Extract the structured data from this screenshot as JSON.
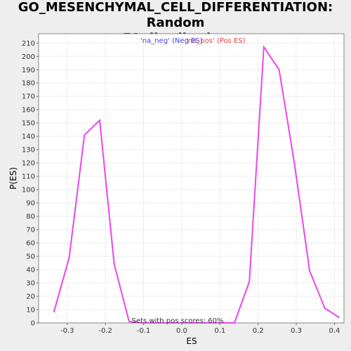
{
  "chart_data": {
    "type": "line",
    "title": "GO_MESENCHYMAL_CELL_DIFFERENTIATION: Random ES distribution",
    "title_line1": "GO_MESENCHYMAL_CELL_DIFFERENTIATION: Random",
    "title_line2": "ES distribution",
    "xlabel": "ES",
    "ylabel": "P(ES)",
    "xlim": [
      -0.375,
      0.425
    ],
    "ylim": [
      0,
      217
    ],
    "x_ticks": [
      -0.3,
      -0.2,
      -0.1,
      0.0,
      0.1,
      0.2,
      0.3,
      0.4
    ],
    "x_tick_labels": [
      "-0.3",
      "-0.2",
      "-0.1",
      "0.0",
      "0.1",
      "0.2",
      "0.3",
      "0.4"
    ],
    "y_ticks": [
      0,
      10,
      20,
      30,
      40,
      50,
      60,
      70,
      80,
      90,
      100,
      110,
      120,
      130,
      140,
      150,
      160,
      170,
      180,
      190,
      200,
      210
    ],
    "y_tick_labels": [
      "0",
      "10",
      "20",
      "30",
      "40",
      "50",
      "60",
      "70",
      "80",
      "90",
      "100",
      "110",
      "120",
      "130",
      "140",
      "150",
      "160",
      "170",
      "180",
      "190",
      "200",
      "210"
    ],
    "grid": true,
    "legend_placement": "top-center",
    "legend": [
      {
        "label": "'na_neg' (Neg ES)",
        "color": "#4444dd"
      },
      {
        "label": "'na_pos' (Pos ES)",
        "color": "#dd4444"
      }
    ],
    "annotation": "Sets with pos scores: 60%",
    "series": [
      {
        "color": "#ee44ee",
        "x": [
          -0.335,
          -0.295,
          -0.255,
          -0.215,
          -0.177,
          -0.138,
          -0.1,
          0.138,
          0.177,
          0.215,
          0.255,
          0.295,
          0.335,
          0.375,
          0.413
        ],
        "y": [
          8,
          49,
          141,
          152,
          44,
          1,
          0,
          0,
          31,
          207,
          190,
          120,
          39,
          11,
          4
        ]
      }
    ]
  }
}
